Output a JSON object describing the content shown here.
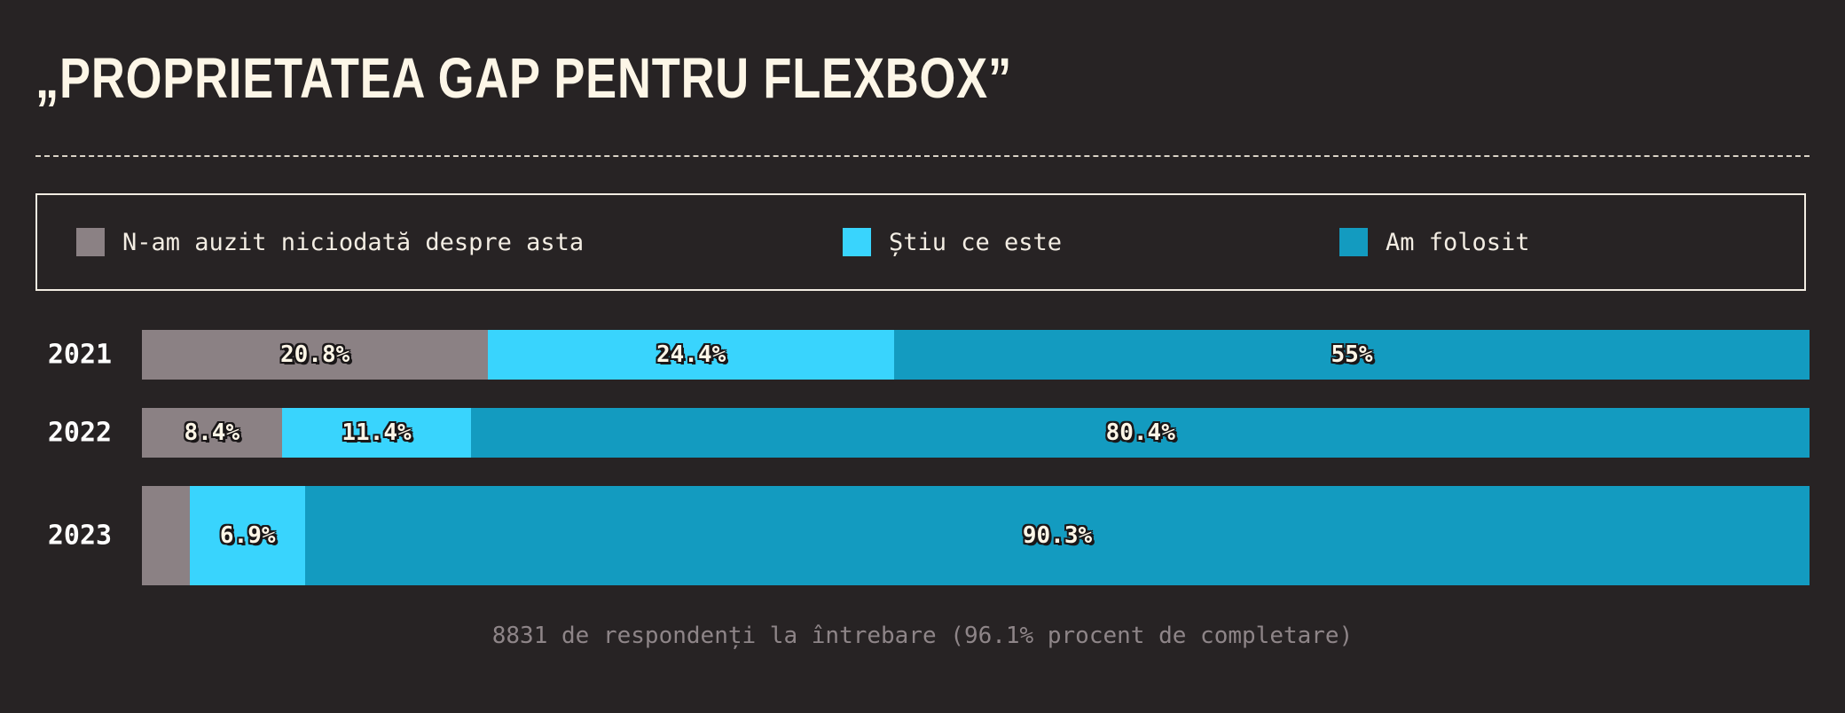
{
  "title": "„PROPRIETATEA GAP PENTRU FLEXBOX”",
  "legend": [
    {
      "label": "N-am auzit niciodată despre asta",
      "color": "#8b8184"
    },
    {
      "label": "Știu ce este",
      "color": "#39d4fd"
    },
    {
      "label": "Am folosit",
      "color": "#139bc0"
    }
  ],
  "footnote": "8831 de respondenți la întrebare (96.1% procent de completare)",
  "chart_data": {
    "type": "bar",
    "orientation": "horizontal",
    "stacked": true,
    "title": "„PROPRIETATEA GAP PENTRU FLEXBOX”",
    "categories": [
      "2021",
      "2022",
      "2023"
    ],
    "series": [
      {
        "name": "N-am auzit niciodată despre asta",
        "color": "#8b8184",
        "values": [
          20.8,
          8.4,
          2.9
        ],
        "labels": [
          "20.8%",
          "8.4%",
          ""
        ]
      },
      {
        "name": "Știu ce este",
        "color": "#39d4fd",
        "values": [
          24.4,
          11.4,
          6.9
        ],
        "labels": [
          "24.4%",
          "11.4%",
          "6.9%"
        ]
      },
      {
        "name": "Am folosit",
        "color": "#139bc0",
        "values": [
          55,
          80.4,
          90.3
        ],
        "labels": [
          "55%",
          "80.4%",
          "90.3%"
        ]
      }
    ],
    "xlim": [
      0,
      100
    ],
    "legend": "top"
  }
}
